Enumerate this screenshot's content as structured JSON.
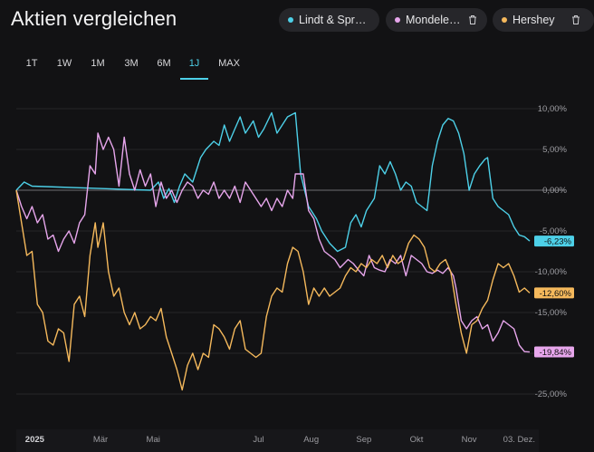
{
  "header": {
    "title": "Aktien vergleichen"
  },
  "chips": [
    {
      "label": "Lindt & Sprue…",
      "color": "#4dd0e8"
    },
    {
      "label": "Mondelez I…",
      "color": "#e7a6ec"
    },
    {
      "label": "Hershey",
      "color": "#f5b95c"
    }
  ],
  "tabs": [
    {
      "label": "1T"
    },
    {
      "label": "1W"
    },
    {
      "label": "1M"
    },
    {
      "label": "3M"
    },
    {
      "label": "6M"
    },
    {
      "label": "1J",
      "active": true
    },
    {
      "label": "MAX"
    }
  ],
  "chart_data": {
    "type": "line",
    "title": "Aktien vergleichen",
    "y_unit": "%",
    "ylim": [
      -28,
      12
    ],
    "yticks": [
      {
        "value": 10,
        "label": "10,00%"
      },
      {
        "value": 5,
        "label": "5,00%"
      },
      {
        "value": 0,
        "label": "0,00%"
      },
      {
        "value": -5,
        "label": "-5,00%"
      },
      {
        "value": -10,
        "label": "-10,00%"
      },
      {
        "value": -15,
        "label": "-15,00%"
      },
      {
        "value": -20,
        "label": "-20,00%"
      },
      {
        "value": -25,
        "label": "-25,00%"
      }
    ],
    "xlim": [
      0,
      11
    ],
    "xticks": [
      {
        "pos": 0.35,
        "label": "2025",
        "bold": true
      },
      {
        "pos": 1.6,
        "label": "Mär"
      },
      {
        "pos": 2.6,
        "label": "Mai"
      },
      {
        "pos": 4.6,
        "label": "Jul"
      },
      {
        "pos": 5.6,
        "label": "Aug"
      },
      {
        "pos": 6.6,
        "label": "Sep"
      },
      {
        "pos": 7.6,
        "label": "Okt"
      },
      {
        "pos": 8.6,
        "label": "Nov"
      },
      {
        "pos": 9.55,
        "label": "03. Dez."
      }
    ],
    "series": [
      {
        "name": "Lindt & Sprue…",
        "color": "#4dd0e8",
        "end_label": "-6,23%",
        "points": [
          [
            0,
            0
          ],
          [
            0.15,
            1
          ],
          [
            0.3,
            0.5
          ],
          [
            2.55,
            0
          ],
          [
            2.7,
            1
          ],
          [
            2.8,
            -1
          ],
          [
            2.9,
            0.2
          ],
          [
            3.0,
            -1.5
          ],
          [
            3.1,
            0.5
          ],
          [
            3.2,
            2
          ],
          [
            3.35,
            1
          ],
          [
            3.5,
            4
          ],
          [
            3.6,
            5
          ],
          [
            3.75,
            6
          ],
          [
            3.85,
            5.5
          ],
          [
            3.95,
            8
          ],
          [
            4.05,
            6
          ],
          [
            4.15,
            7.5
          ],
          [
            4.25,
            9
          ],
          [
            4.35,
            7
          ],
          [
            4.5,
            8.5
          ],
          [
            4.6,
            6.5
          ],
          [
            4.7,
            7.5
          ],
          [
            4.85,
            9.5
          ],
          [
            4.95,
            7
          ],
          [
            5.05,
            8
          ],
          [
            5.15,
            9
          ],
          [
            5.3,
            9.5
          ],
          [
            5.4,
            2
          ],
          [
            5.55,
            -2
          ],
          [
            5.7,
            -3.5
          ],
          [
            5.8,
            -5
          ],
          [
            5.95,
            -6.5
          ],
          [
            6.1,
            -7.5
          ],
          [
            6.25,
            -7
          ],
          [
            6.35,
            -4
          ],
          [
            6.45,
            -3
          ],
          [
            6.55,
            -4.5
          ],
          [
            6.65,
            -2.5
          ],
          [
            6.8,
            -1
          ],
          [
            6.9,
            3
          ],
          [
            7.0,
            2
          ],
          [
            7.1,
            3.5
          ],
          [
            7.2,
            2
          ],
          [
            7.3,
            0
          ],
          [
            7.4,
            1
          ],
          [
            7.5,
            0.5
          ],
          [
            7.6,
            -1.5
          ],
          [
            7.7,
            -2
          ],
          [
            7.8,
            -2.5
          ],
          [
            7.9,
            3
          ],
          [
            8.0,
            6
          ],
          [
            8.1,
            8
          ],
          [
            8.2,
            8.8
          ],
          [
            8.3,
            8.5
          ],
          [
            8.4,
            7
          ],
          [
            8.5,
            4.5
          ],
          [
            8.6,
            0
          ],
          [
            8.7,
            2
          ],
          [
            8.8,
            3
          ],
          [
            8.9,
            3.8
          ],
          [
            8.95,
            4
          ],
          [
            9.05,
            -1
          ],
          [
            9.15,
            -2
          ],
          [
            9.25,
            -2.5
          ],
          [
            9.35,
            -3
          ],
          [
            9.45,
            -4.5
          ],
          [
            9.55,
            -5.5
          ],
          [
            9.65,
            -5.7
          ],
          [
            9.75,
            -6.23
          ]
        ]
      },
      {
        "name": "Mondelez I…",
        "color": "#e7a6ec",
        "end_label": "-19,84%",
        "points": [
          [
            0,
            0
          ],
          [
            0.1,
            -2
          ],
          [
            0.2,
            -3.5
          ],
          [
            0.3,
            -2
          ],
          [
            0.4,
            -4
          ],
          [
            0.5,
            -3
          ],
          [
            0.6,
            -6
          ],
          [
            0.7,
            -5.5
          ],
          [
            0.8,
            -7.5
          ],
          [
            0.9,
            -6
          ],
          [
            1.0,
            -5
          ],
          [
            1.1,
            -6.5
          ],
          [
            1.2,
            -4
          ],
          [
            1.3,
            -3
          ],
          [
            1.4,
            3
          ],
          [
            1.5,
            2
          ],
          [
            1.55,
            7
          ],
          [
            1.65,
            5
          ],
          [
            1.75,
            6.5
          ],
          [
            1.85,
            5
          ],
          [
            1.95,
            0.5
          ],
          [
            2.05,
            6.5
          ],
          [
            2.15,
            2
          ],
          [
            2.25,
            0
          ],
          [
            2.35,
            2.5
          ],
          [
            2.45,
            0.5
          ],
          [
            2.55,
            2
          ],
          [
            2.65,
            -2
          ],
          [
            2.75,
            1
          ],
          [
            2.85,
            -1
          ],
          [
            2.95,
            0
          ],
          [
            3.05,
            -1.5
          ],
          [
            3.15,
            0
          ],
          [
            3.25,
            1
          ],
          [
            3.35,
            0.5
          ],
          [
            3.45,
            -1
          ],
          [
            3.55,
            0
          ],
          [
            3.65,
            -0.5
          ],
          [
            3.75,
            1
          ],
          [
            3.85,
            -1
          ],
          [
            3.95,
            0
          ],
          [
            4.05,
            -1
          ],
          [
            4.15,
            0.5
          ],
          [
            4.25,
            -1.5
          ],
          [
            4.35,
            1
          ],
          [
            4.45,
            0
          ],
          [
            4.55,
            -1
          ],
          [
            4.65,
            -2
          ],
          [
            4.75,
            -1
          ],
          [
            4.85,
            -2.5
          ],
          [
            4.95,
            -1
          ],
          [
            5.05,
            -2
          ],
          [
            5.15,
            0
          ],
          [
            5.25,
            -1
          ],
          [
            5.3,
            2
          ],
          [
            5.45,
            2
          ],
          [
            5.55,
            -2.5
          ],
          [
            5.65,
            -3.5
          ],
          [
            5.75,
            -6
          ],
          [
            5.85,
            -7.5
          ],
          [
            5.95,
            -8
          ],
          [
            6.05,
            -8.5
          ],
          [
            6.15,
            -9.5
          ],
          [
            6.3,
            -8.5
          ],
          [
            6.4,
            -9
          ],
          [
            6.5,
            -9.8
          ],
          [
            6.6,
            -10.5
          ],
          [
            6.7,
            -8
          ],
          [
            6.8,
            -9.5
          ],
          [
            6.9,
            -9.8
          ],
          [
            7.0,
            -10
          ],
          [
            7.1,
            -8.5
          ],
          [
            7.2,
            -9
          ],
          [
            7.3,
            -8
          ],
          [
            7.4,
            -10.5
          ],
          [
            7.5,
            -8
          ],
          [
            7.6,
            -8.5
          ],
          [
            7.7,
            -9
          ],
          [
            7.8,
            -10
          ],
          [
            7.9,
            -10.2
          ],
          [
            8.0,
            -9.8
          ],
          [
            8.1,
            -10.2
          ],
          [
            8.2,
            -9.5
          ],
          [
            8.3,
            -10.5
          ],
          [
            8.35,
            -12
          ],
          [
            8.45,
            -16
          ],
          [
            8.55,
            -17
          ],
          [
            8.65,
            -16
          ],
          [
            8.75,
            -15.5
          ],
          [
            8.85,
            -17
          ],
          [
            8.95,
            -16.5
          ],
          [
            9.05,
            -18.5
          ],
          [
            9.15,
            -17.5
          ],
          [
            9.25,
            -16
          ],
          [
            9.35,
            -16.5
          ],
          [
            9.45,
            -17
          ],
          [
            9.55,
            -19
          ],
          [
            9.65,
            -19.8
          ],
          [
            9.75,
            -19.84
          ]
        ]
      },
      {
        "name": "Hershey",
        "color": "#f5b95c",
        "end_label": "-12,60%",
        "points": [
          [
            0,
            0
          ],
          [
            0.1,
            -4
          ],
          [
            0.2,
            -8
          ],
          [
            0.3,
            -7.5
          ],
          [
            0.4,
            -14
          ],
          [
            0.5,
            -15
          ],
          [
            0.6,
            -18.5
          ],
          [
            0.7,
            -19
          ],
          [
            0.8,
            -17
          ],
          [
            0.9,
            -17.5
          ],
          [
            1.0,
            -21
          ],
          [
            1.1,
            -14
          ],
          [
            1.2,
            -13
          ],
          [
            1.3,
            -15.5
          ],
          [
            1.4,
            -8
          ],
          [
            1.5,
            -4
          ],
          [
            1.55,
            -7
          ],
          [
            1.65,
            -4
          ],
          [
            1.75,
            -10
          ],
          [
            1.85,
            -13
          ],
          [
            1.95,
            -12
          ],
          [
            2.05,
            -15
          ],
          [
            2.15,
            -16.5
          ],
          [
            2.25,
            -15
          ],
          [
            2.35,
            -17
          ],
          [
            2.45,
            -16.5
          ],
          [
            2.55,
            -15.5
          ],
          [
            2.65,
            -16
          ],
          [
            2.75,
            -14.5
          ],
          [
            2.85,
            -18
          ],
          [
            2.95,
            -20
          ],
          [
            3.05,
            -22
          ],
          [
            3.15,
            -24.5
          ],
          [
            3.25,
            -21.5
          ],
          [
            3.35,
            -20
          ],
          [
            3.45,
            -22
          ],
          [
            3.55,
            -20
          ],
          [
            3.65,
            -20.5
          ],
          [
            3.75,
            -16.5
          ],
          [
            3.85,
            -17
          ],
          [
            3.95,
            -18
          ],
          [
            4.05,
            -19.5
          ],
          [
            4.15,
            -17
          ],
          [
            4.25,
            -16
          ],
          [
            4.35,
            -19.5
          ],
          [
            4.45,
            -20
          ],
          [
            4.55,
            -20.5
          ],
          [
            4.65,
            -20
          ],
          [
            4.75,
            -15.5
          ],
          [
            4.85,
            -13
          ],
          [
            4.95,
            -12
          ],
          [
            5.05,
            -12.5
          ],
          [
            5.15,
            -9
          ],
          [
            5.25,
            -7
          ],
          [
            5.35,
            -7.5
          ],
          [
            5.45,
            -10
          ],
          [
            5.55,
            -14
          ],
          [
            5.65,
            -12
          ],
          [
            5.75,
            -13
          ],
          [
            5.85,
            -12
          ],
          [
            5.95,
            -13
          ],
          [
            6.05,
            -12.5
          ],
          [
            6.15,
            -12
          ],
          [
            6.25,
            -10.5
          ],
          [
            6.35,
            -9.5
          ],
          [
            6.45,
            -10
          ],
          [
            6.55,
            -9
          ],
          [
            6.65,
            -9.5
          ],
          [
            6.75,
            -8.5
          ],
          [
            6.85,
            -9
          ],
          [
            6.95,
            -8
          ],
          [
            7.05,
            -9.5
          ],
          [
            7.15,
            -8
          ],
          [
            7.25,
            -9
          ],
          [
            7.35,
            -8.5
          ],
          [
            7.45,
            -6.5
          ],
          [
            7.55,
            -5.5
          ],
          [
            7.65,
            -6
          ],
          [
            7.75,
            -7
          ],
          [
            7.85,
            -9.5
          ],
          [
            7.95,
            -10
          ],
          [
            8.05,
            -9
          ],
          [
            8.15,
            -8.5
          ],
          [
            8.25,
            -10
          ],
          [
            8.35,
            -14
          ],
          [
            8.45,
            -17.5
          ],
          [
            8.55,
            -20
          ],
          [
            8.65,
            -16.5
          ],
          [
            8.75,
            -16
          ],
          [
            8.85,
            -14.5
          ],
          [
            8.95,
            -13.5
          ],
          [
            9.05,
            -11
          ],
          [
            9.15,
            -9
          ],
          [
            9.25,
            -9.5
          ],
          [
            9.35,
            -9
          ],
          [
            9.45,
            -10.5
          ],
          [
            9.55,
            -12.5
          ],
          [
            9.65,
            -12
          ],
          [
            9.75,
            -12.6
          ]
        ]
      }
    ]
  }
}
